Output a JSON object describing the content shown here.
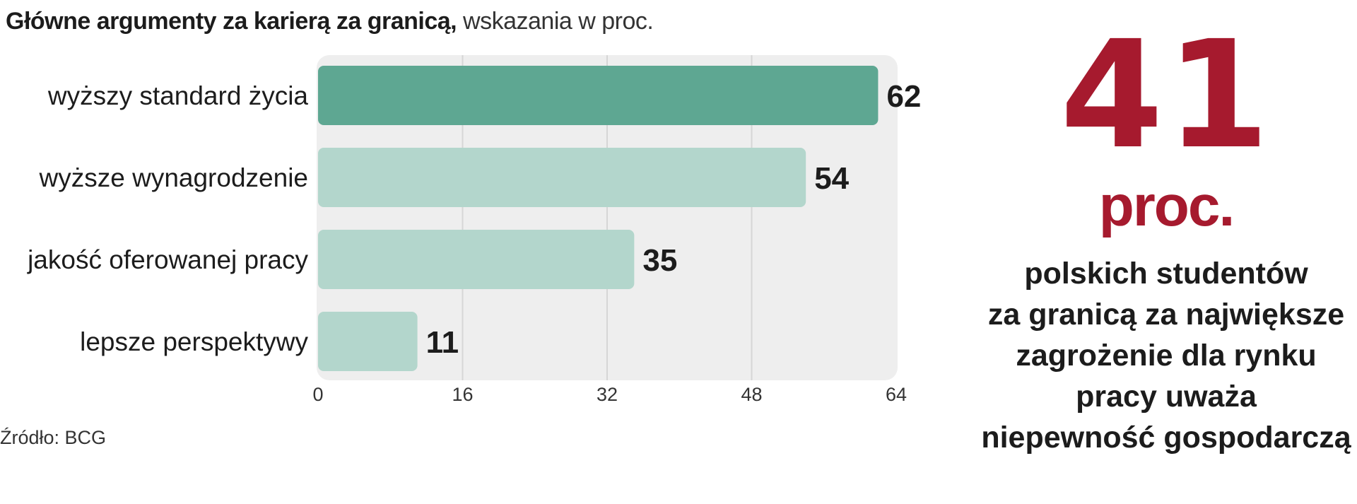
{
  "title": {
    "bold": "Główne argumenty za karierą za granicą,",
    "light": " wskazania w proc."
  },
  "chart_data": {
    "type": "bar",
    "orientation": "horizontal",
    "categories": [
      "wyższy standard życia",
      "wyższe wynagrodzenie",
      "jakość oferowanej pracy",
      "lepsze perspektywy"
    ],
    "values": [
      62,
      54,
      35,
      11
    ],
    "value_labels": [
      "62",
      "54",
      "35",
      "11"
    ],
    "xlim": [
      0,
      64
    ],
    "xticks": [
      0,
      16,
      32,
      48,
      64
    ],
    "xtick_labels": [
      "0",
      "16",
      "32",
      "48",
      "64"
    ],
    "grid": true,
    "highlight_index": 0,
    "colors": {
      "highlight": "#5ea792",
      "bar": "#b3d6cc",
      "panel": "#eeeeee",
      "grid": "#d6d6d6"
    }
  },
  "source": "Źródło: BCG",
  "side": {
    "number": "41",
    "unit": "proc.",
    "lines": [
      "polskich studentów",
      "za granicą za największe",
      "zagrożenie dla rynku",
      "pracy uważa",
      "niepewność gospodarczą"
    ],
    "accent_color": "#a61a2e"
  }
}
